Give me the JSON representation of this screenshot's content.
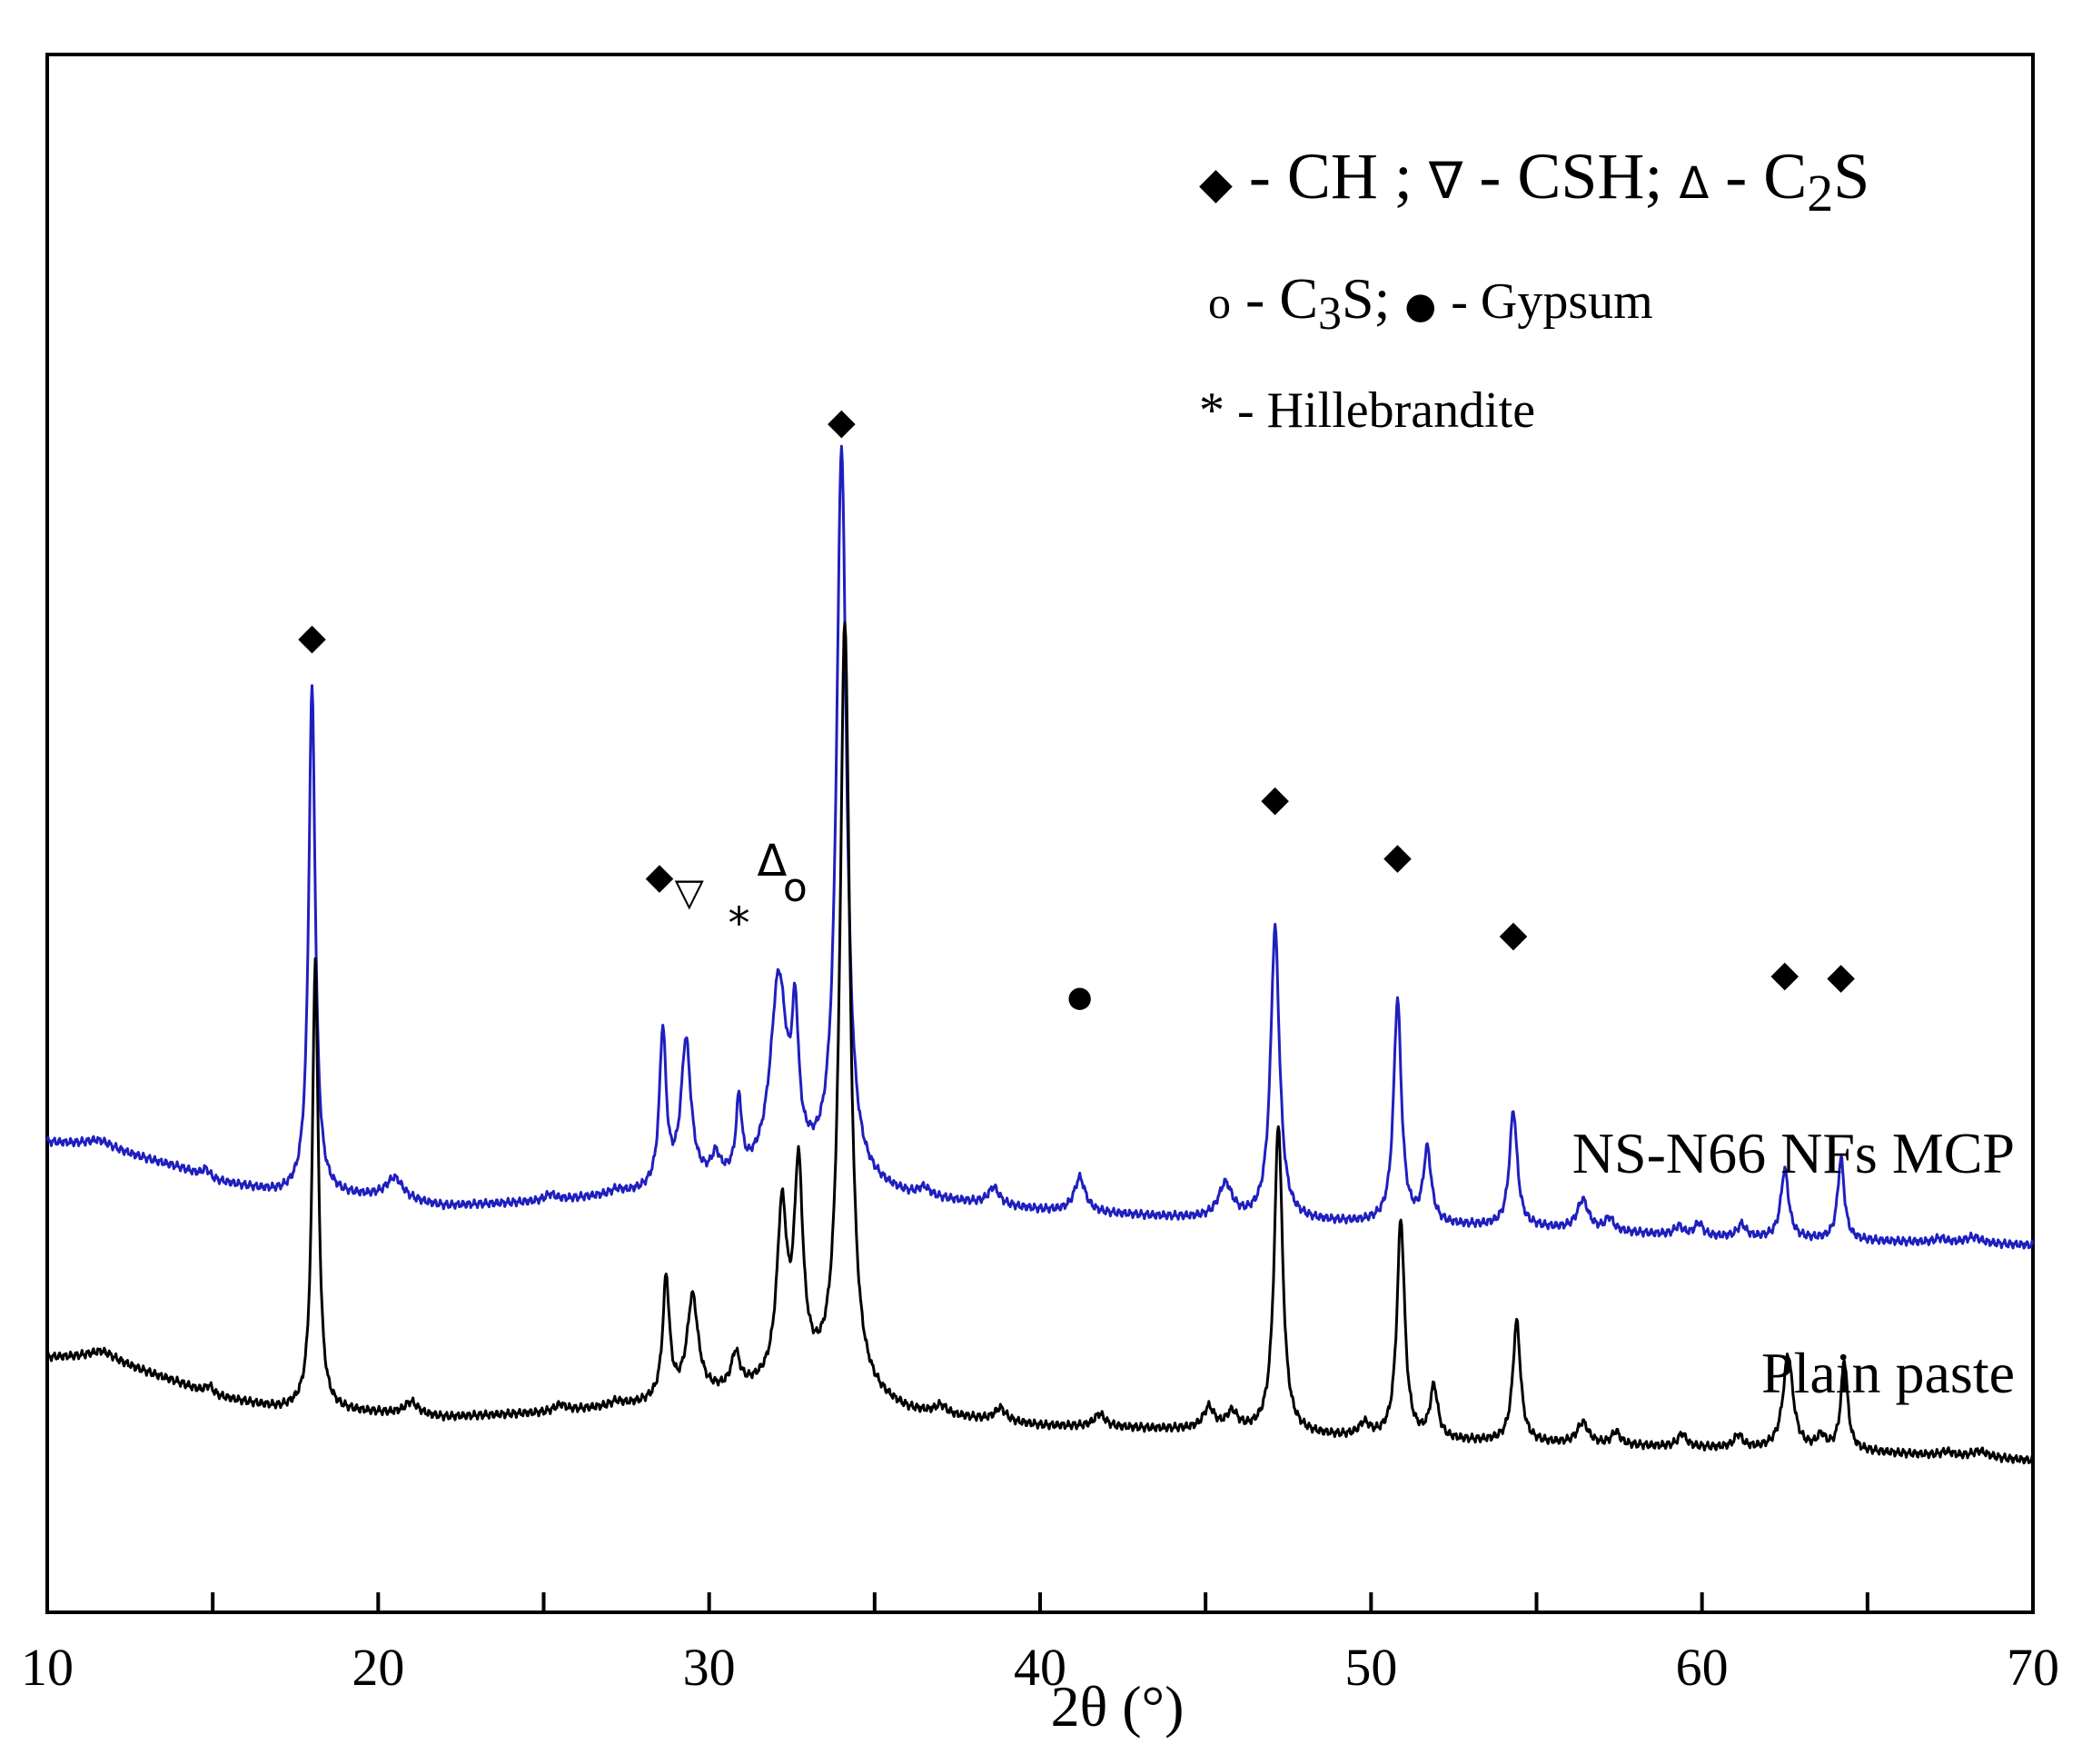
{
  "chart_data": {
    "type": "line",
    "title": "",
    "xlabel": "2θ (°)",
    "ylabel": "",
    "xlim": [
      10,
      70
    ],
    "xticks": [
      "10",
      "20",
      "30",
      "40",
      "50",
      "60",
      "70"
    ],
    "series": [
      {
        "name": "NS-N66 NFs MCP",
        "color": "#1f1fbf",
        "offset": 0.5,
        "baseline": [
          [
            10,
            0.24
          ],
          [
            11.5,
            0.23
          ],
          [
            14,
            0.18
          ],
          [
            15,
            0.15
          ],
          [
            17,
            0.12
          ],
          [
            20,
            0.11
          ],
          [
            22,
            0.09
          ],
          [
            25,
            0.1
          ],
          [
            28,
            0.12
          ],
          [
            30,
            0.14
          ],
          [
            33,
            0.16
          ],
          [
            36,
            0.11
          ],
          [
            40,
            0.08
          ],
          [
            45,
            0.06
          ],
          [
            50,
            0.05
          ],
          [
            55,
            0.04
          ],
          [
            60,
            0.02
          ],
          [
            65,
            0.01
          ],
          [
            70,
            0.0
          ]
        ],
        "peaks": [
          [
            11.6,
            0.015,
            0.5
          ],
          [
            14.8,
            0.02,
            0.15
          ],
          [
            18.0,
            1.18,
            0.12
          ],
          [
            20.5,
            0.05,
            0.3
          ],
          [
            25.2,
            0.015,
            0.2
          ],
          [
            27.2,
            0.01,
            0.2
          ],
          [
            28.6,
            0.36,
            0.12
          ],
          [
            29.3,
            0.33,
            0.18
          ],
          [
            30.2,
            0.05,
            0.15
          ],
          [
            30.9,
            0.17,
            0.1
          ],
          [
            32.1,
            0.45,
            0.3
          ],
          [
            32.6,
            0.3,
            0.12
          ],
          [
            34.0,
            1.7,
            0.18
          ],
          [
            36.5,
            0.02,
            0.2
          ],
          [
            38.6,
            0.04,
            0.2
          ],
          [
            41.2,
            0.08,
            0.2
          ],
          [
            45.6,
            0.08,
            0.25
          ],
          [
            47.1,
            0.68,
            0.16
          ],
          [
            50.8,
            0.52,
            0.14
          ],
          [
            51.7,
            0.17,
            0.14
          ],
          [
            54.3,
            0.27,
            0.14
          ],
          [
            56.4,
            0.07,
            0.2
          ],
          [
            57.2,
            0.03,
            0.15
          ],
          [
            59.3,
            0.02,
            0.15
          ],
          [
            59.9,
            0.03,
            0.15
          ],
          [
            61.2,
            0.03,
            0.15
          ],
          [
            62.5,
            0.16,
            0.14
          ],
          [
            64.2,
            0.19,
            0.12
          ],
          [
            67.2,
            0.01,
            0.2
          ],
          [
            68.2,
            0.015,
            0.3
          ]
        ],
        "end_label": "NS-N66 NFs MCP"
      },
      {
        "name": "Plain paste",
        "color": "#000000",
        "offset": 0.0,
        "baseline": [
          [
            10,
            0.24
          ],
          [
            11.6,
            0.24
          ],
          [
            14,
            0.18
          ],
          [
            15,
            0.15
          ],
          [
            17,
            0.12
          ],
          [
            20,
            0.11
          ],
          [
            22,
            0.1
          ],
          [
            25,
            0.11
          ],
          [
            28,
            0.13
          ],
          [
            30,
            0.15
          ],
          [
            33,
            0.18
          ],
          [
            36,
            0.11
          ],
          [
            40,
            0.08
          ],
          [
            45,
            0.07
          ],
          [
            50,
            0.05
          ],
          [
            55,
            0.04
          ],
          [
            60,
            0.03
          ],
          [
            65,
            0.02
          ],
          [
            70,
            0.0
          ]
        ],
        "peaks": [
          [
            11.7,
            0.015,
            0.5
          ],
          [
            14.9,
            0.02,
            0.15
          ],
          [
            18.1,
            1.05,
            0.11
          ],
          [
            21.0,
            0.03,
            0.25
          ],
          [
            25.5,
            0.015,
            0.2
          ],
          [
            27.2,
            0.01,
            0.2
          ],
          [
            28.7,
            0.28,
            0.12
          ],
          [
            29.5,
            0.23,
            0.2
          ],
          [
            30.8,
            0.08,
            0.15
          ],
          [
            32.2,
            0.39,
            0.18
          ],
          [
            32.7,
            0.47,
            0.16
          ],
          [
            34.1,
            1.78,
            0.18
          ],
          [
            37.0,
            0.02,
            0.2
          ],
          [
            38.8,
            0.03,
            0.2
          ],
          [
            41.8,
            0.03,
            0.2
          ],
          [
            45.1,
            0.05,
            0.2
          ],
          [
            45.8,
            0.04,
            0.2
          ],
          [
            47.2,
            0.72,
            0.15
          ],
          [
            49.8,
            0.03,
            0.2
          ],
          [
            50.9,
            0.51,
            0.14
          ],
          [
            51.9,
            0.12,
            0.14
          ],
          [
            54.4,
            0.28,
            0.14
          ],
          [
            56.4,
            0.05,
            0.2
          ],
          [
            57.4,
            0.03,
            0.15
          ],
          [
            59.4,
            0.03,
            0.15
          ],
          [
            61.1,
            0.03,
            0.15
          ],
          [
            62.6,
            0.22,
            0.18
          ],
          [
            63.6,
            0.03,
            0.15
          ],
          [
            64.3,
            0.21,
            0.12
          ],
          [
            67.4,
            0.01,
            0.2
          ],
          [
            68.4,
            0.015,
            0.3
          ]
        ],
        "end_label": "Plain paste"
      }
    ],
    "annotations": [
      {
        "symbol": "◆",
        "x": 18.0,
        "y": 1.908
      },
      {
        "symbol": "◆",
        "x": 28.5,
        "y": 1.352
      },
      {
        "symbol": "▽",
        "x": 29.4,
        "y": 1.314
      },
      {
        "symbol": "*",
        "x": 30.9,
        "y": 1.241
      },
      {
        "symbol": "Δ",
        "x": 31.9,
        "y": 1.386
      },
      {
        "symbol": "o",
        "x": 32.6,
        "y": 1.325
      },
      {
        "symbol": "◆",
        "x": 34.0,
        "y": 2.408
      },
      {
        "symbol": "●",
        "x": 41.2,
        "y": 1.074
      },
      {
        "symbol": "◆",
        "x": 47.1,
        "y": 1.533
      },
      {
        "symbol": "◆",
        "x": 50.8,
        "y": 1.399
      },
      {
        "symbol": "◆",
        "x": 54.3,
        "y": 1.218
      },
      {
        "symbol": "◆",
        "x": 62.5,
        "y": 1.126
      },
      {
        "symbol": "◆",
        "x": 64.2,
        "y": 1.12
      }
    ],
    "legend": {
      "placement": "top-right",
      "line1": {
        "s1": "◆",
        "t1": " - CH ; ",
        "s2": "∇",
        "t2": " - CSH; ",
        "s3": "Δ",
        "t3": " - C",
        "sub": "2",
        "t4": "S"
      },
      "line2": {
        "s1": "o",
        "t1": " - C",
        "sub": "3",
        "t2": "S; ",
        "s2": "●",
        "t3": " - Gypsum"
      },
      "line3": {
        "s1": "*",
        "t1": " - Hillebrandite"
      }
    }
  }
}
